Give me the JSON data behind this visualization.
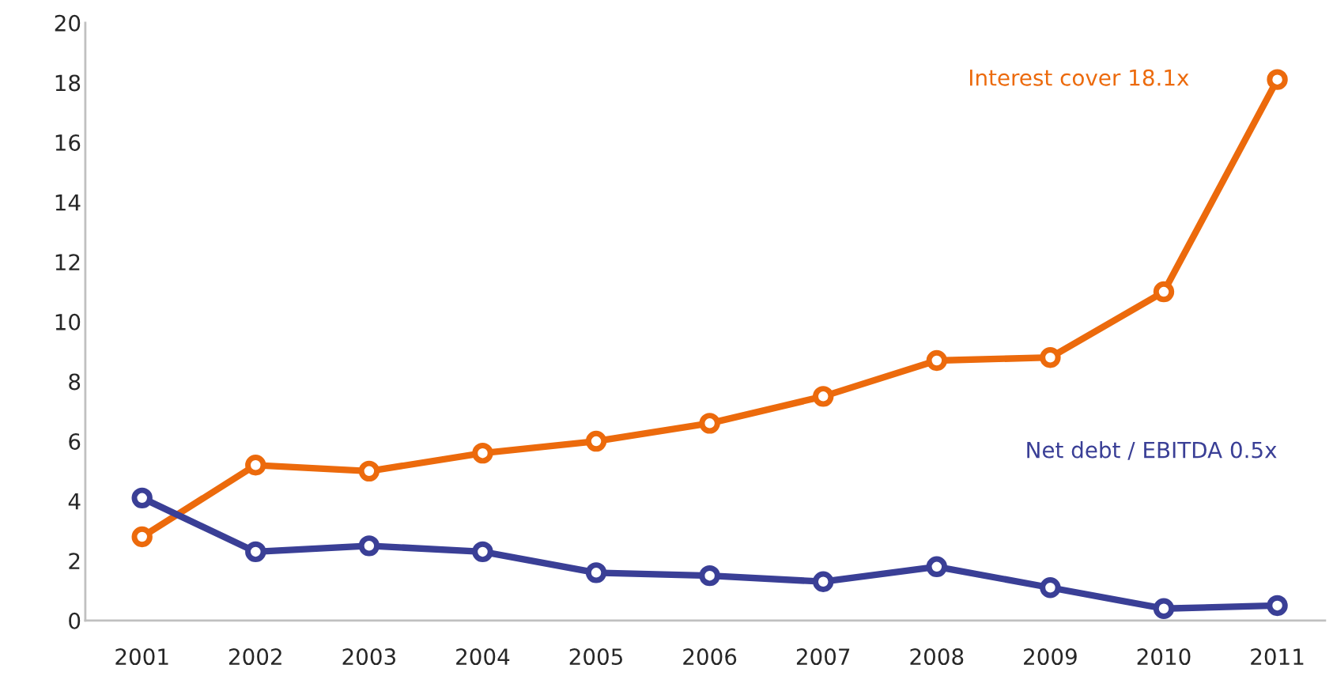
{
  "chart_data": {
    "type": "line",
    "categories": [
      "2001",
      "2002",
      "2003",
      "2004",
      "2005",
      "2006",
      "2007",
      "2008",
      "2009",
      "2010",
      "2011"
    ],
    "series": [
      {
        "name": "Interest cover 18.1x",
        "color": "#ec6a0c",
        "values": [
          2.8,
          5.2,
          5.0,
          5.6,
          6.0,
          6.6,
          7.5,
          8.7,
          8.8,
          11.0,
          18.1
        ]
      },
      {
        "name": "Net debt / EBITDA 0.5x",
        "color": "#3a3f96",
        "values": [
          4.1,
          2.3,
          2.5,
          2.3,
          1.6,
          1.5,
          1.3,
          1.8,
          1.1,
          0.4,
          0.5
        ]
      }
    ],
    "ylim": [
      0,
      20
    ],
    "yticks": [
      0,
      2,
      4,
      6,
      8,
      10,
      12,
      14,
      16,
      18,
      20
    ],
    "marker": "circle",
    "line_style": "solid",
    "grid": false,
    "legend": false
  }
}
